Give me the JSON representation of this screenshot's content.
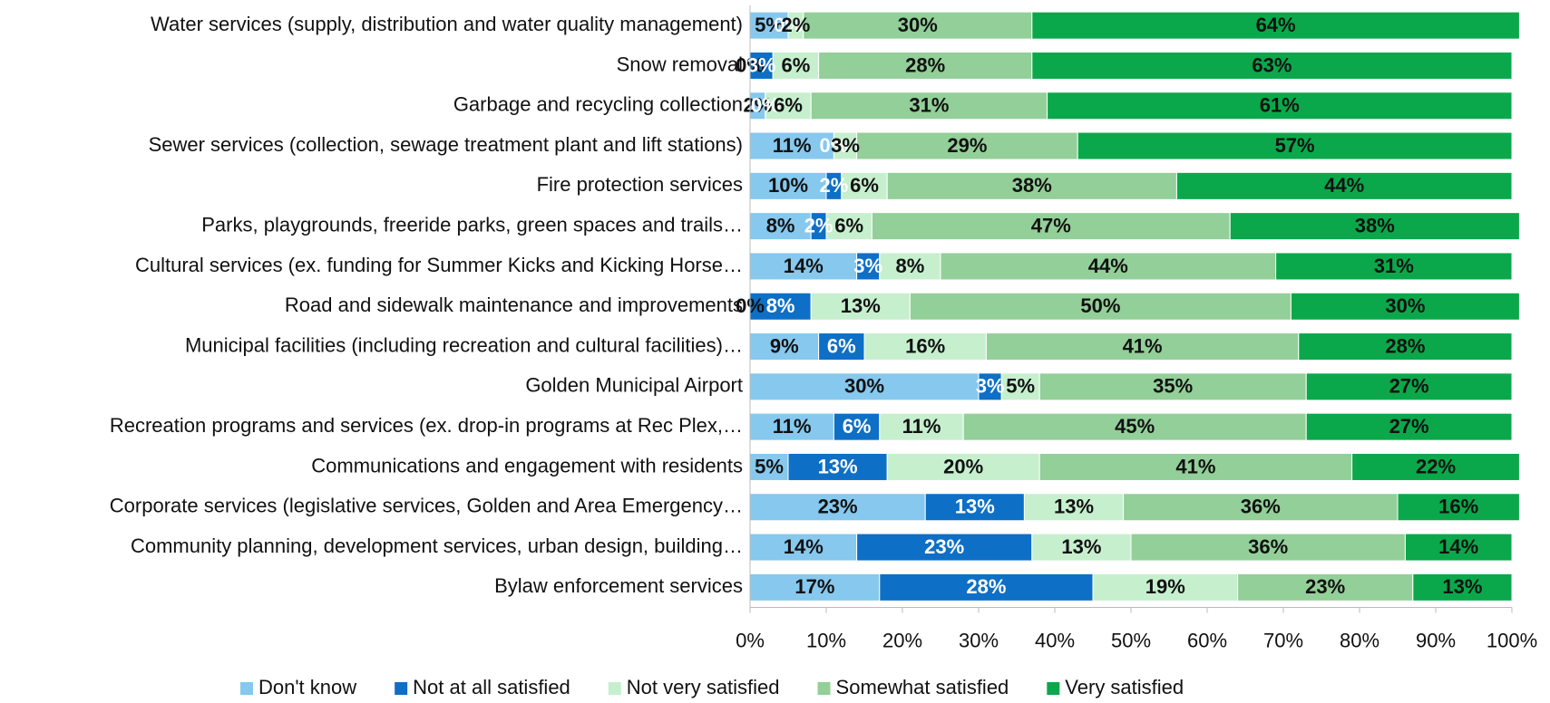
{
  "chart_data": {
    "type": "stacked_bar_horizontal",
    "categories": [
      "Water services (supply, distribution and water quality management)",
      "Snow removal",
      "Garbage and recycling collection",
      "Sewer services (collection, sewage treatment plant and lift stations)",
      "Fire protection services",
      "Parks, playgrounds, freeride parks, green spaces and trails…",
      "Cultural services (ex. funding for Summer Kicks and Kicking Horse…",
      "Road and sidewalk maintenance and improvements",
      "Municipal facilities (including recreation and cultural facilities)…",
      "Golden Municipal Airport",
      "Recreation programs and services (ex. drop-in programs at Rec Plex,…",
      "Communications and engagement with residents",
      "Corporate services (legislative services, Golden and Area Emergency…",
      "Community planning, development services, urban design, building…",
      "Bylaw enforcement services"
    ],
    "series": [
      {
        "name": "Don't know",
        "color": "#86c8ee",
        "values": [
          5,
          0,
          2,
          11,
          10,
          8,
          14,
          0,
          9,
          30,
          11,
          5,
          23,
          14,
          17
        ],
        "value_labels": [
          "5%",
          "0%",
          "2%",
          "11%",
          "10%",
          "8%",
          "14%",
          "0%",
          "9%",
          "30%",
          "11%",
          "5%",
          "23%",
          "14%",
          "17%"
        ]
      },
      {
        "name": "Not at all satisfied",
        "color": "#0e6fc6",
        "values": [
          0,
          3,
          0,
          0,
          2,
          2,
          3,
          8,
          6,
          3,
          6,
          13,
          13,
          23,
          28
        ],
        "value_labels": [
          "0%",
          "3%",
          "0%",
          "0%",
          "2%",
          "2%",
          "3%",
          "8%",
          "6%",
          "3%",
          "6%",
          "13%",
          "13%",
          "23%",
          "28%"
        ]
      },
      {
        "name": "Not very satisfied",
        "color": "#c6efce",
        "values": [
          2,
          6,
          6,
          3,
          6,
          6,
          8,
          13,
          16,
          5,
          11,
          20,
          13,
          13,
          19
        ],
        "value_labels": [
          "2%",
          "6%",
          "6%",
          "3%",
          "6%",
          "6%",
          "8%",
          "13%",
          "16%",
          "5%",
          "11%",
          "20%",
          "13%",
          "13%",
          "19%"
        ]
      },
      {
        "name": "Somewhat satisfied",
        "color": "#93cf98",
        "values": [
          30,
          28,
          31,
          29,
          38,
          47,
          44,
          50,
          41,
          35,
          45,
          41,
          36,
          36,
          23
        ],
        "value_labels": [
          "30%",
          "28%",
          "31%",
          "29%",
          "38%",
          "47%",
          "44%",
          "50%",
          "41%",
          "35%",
          "45%",
          "41%",
          "36%",
          "36%",
          "23%"
        ]
      },
      {
        "name": "Very satisfied",
        "color": "#0aa84a",
        "values": [
          64,
          63,
          61,
          57,
          44,
          38,
          31,
          30,
          28,
          27,
          27,
          22,
          16,
          14,
          13
        ],
        "value_labels": [
          "64%",
          "63%",
          "61%",
          "57%",
          "44%",
          "38%",
          "31%",
          "30%",
          "28%",
          "27%",
          "27%",
          "22%",
          "16%",
          "14%",
          "13%"
        ]
      }
    ],
    "xlim": [
      0,
      100
    ],
    "xticks": [
      {
        "value": 0,
        "label": "0%"
      },
      {
        "value": 10,
        "label": "10%"
      },
      {
        "value": 20,
        "label": "20%"
      },
      {
        "value": 30,
        "label": "30%"
      },
      {
        "value": 40,
        "label": "40%"
      },
      {
        "value": 50,
        "label": "50%"
      },
      {
        "value": 60,
        "label": "60%"
      },
      {
        "value": 70,
        "label": "70%"
      },
      {
        "value": 80,
        "label": "80%"
      },
      {
        "value": 90,
        "label": "90%"
      },
      {
        "value": 100,
        "label": "100%"
      }
    ],
    "legend": "bottom"
  }
}
